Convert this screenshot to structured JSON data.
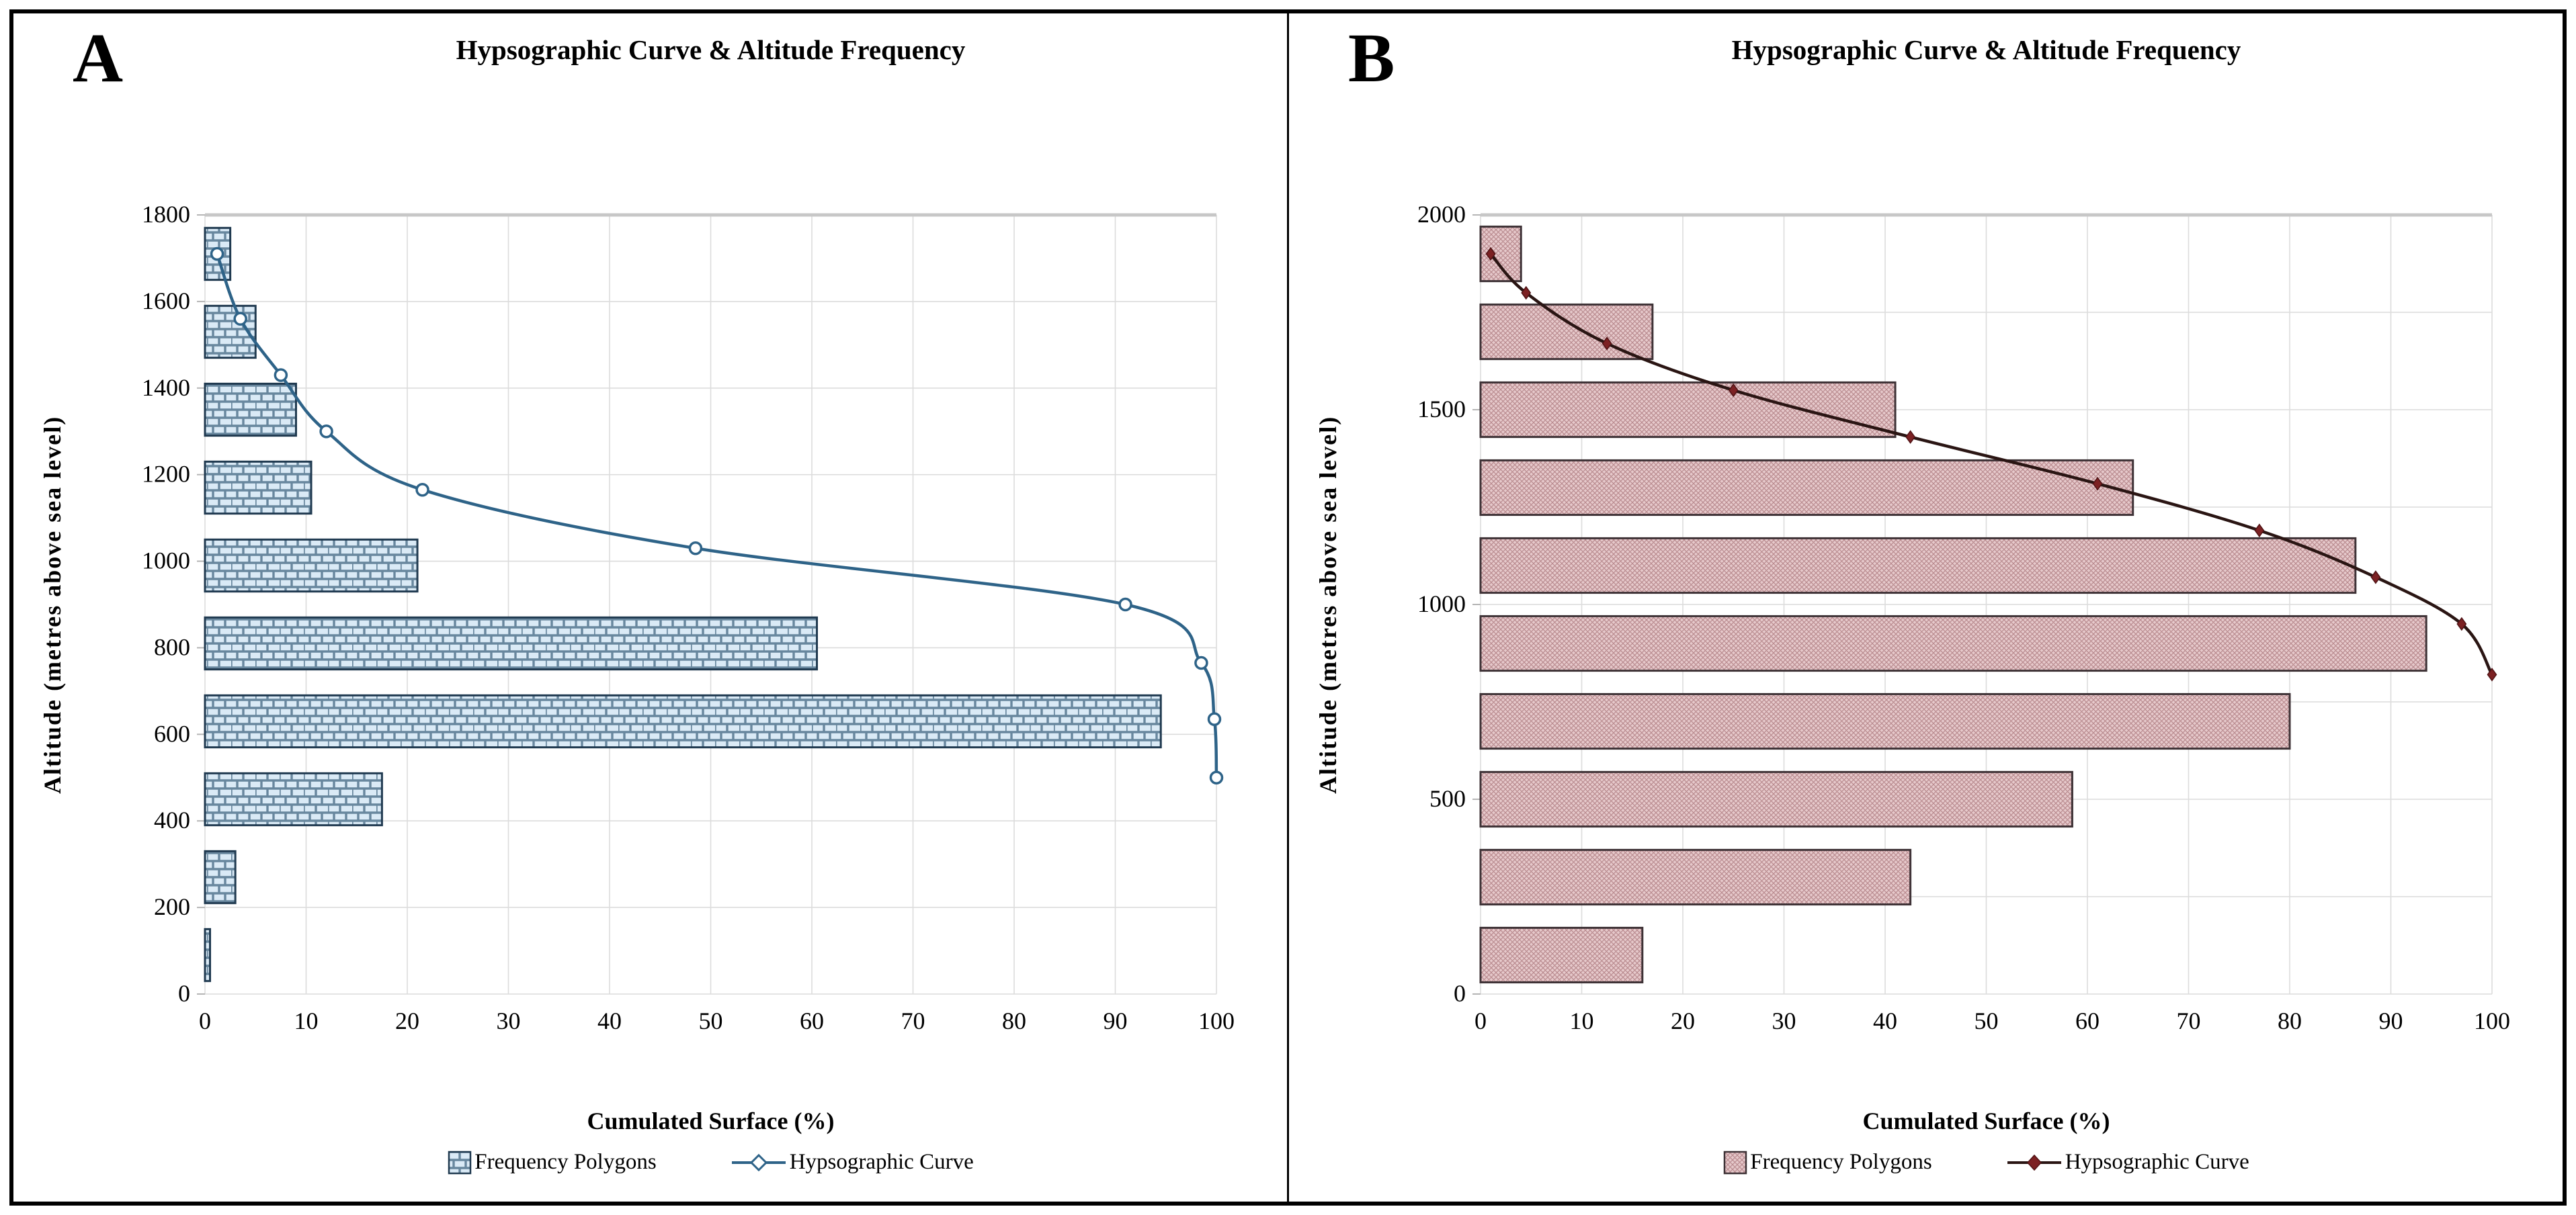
{
  "figure": {
    "panel_count": 2,
    "frame_color": "#000000",
    "background": "#ffffff"
  },
  "chart_data": [
    {
      "type": "bar+line",
      "panel_label": "A",
      "title": "Hypsographic Curve & Altitude Frequency",
      "xlabel": "Cumulated Surface (%)",
      "ylabel": "Altitude (metres above sea level)",
      "x_axis": {
        "min": 0,
        "max": 100,
        "tick_step": 10,
        "grid": true
      },
      "y_axis": {
        "min": 0,
        "max": 1800,
        "tick_step": 200,
        "grid_step": 200,
        "band_height_m": 120,
        "grid": true
      },
      "legend": {
        "bars": "Frequency Polygons",
        "curve": "Hypsographic Curve",
        "position": "bottom"
      },
      "bars": [
        {
          "altitude": 1710,
          "value": 2.5
        },
        {
          "altitude": 1530,
          "value": 5
        },
        {
          "altitude": 1350,
          "value": 9
        },
        {
          "altitude": 1170,
          "value": 10.5
        },
        {
          "altitude": 990,
          "value": 21
        },
        {
          "altitude": 810,
          "value": 60.5
        },
        {
          "altitude": 630,
          "value": 94.5
        },
        {
          "altitude": 450,
          "value": 17.5
        },
        {
          "altitude": 270,
          "value": 3
        },
        {
          "altitude": 90,
          "value": 0.5
        }
      ],
      "curve": [
        [
          1.2,
          1710
        ],
        [
          3.5,
          1560
        ],
        [
          7.5,
          1430
        ],
        [
          12,
          1300
        ],
        [
          21.5,
          1165
        ],
        [
          48.5,
          1030
        ],
        [
          91,
          900
        ],
        [
          98.5,
          765
        ],
        [
          99.8,
          635
        ],
        [
          100,
          500
        ]
      ],
      "marker": "open-circle",
      "hatch_style": "brick",
      "colors": {
        "line": "#2e6388",
        "marker_fill": "#ffffff",
        "marker_stroke": "#2e6388",
        "bar_fill": "#daeaf6",
        "bar_hatch": "#68879e",
        "bar_border": "#203a50",
        "grid": "#dcdcdc",
        "axis_tick": "#b5b5b5",
        "text": "#000000"
      }
    },
    {
      "type": "bar+line",
      "panel_label": "B",
      "title": "Hypsographic Curve & Altitude Frequency",
      "xlabel": "Cumulated Surface (%)",
      "ylabel": "Altitude (metres above sea level)",
      "x_axis": {
        "min": 0,
        "max": 100,
        "tick_step": 10,
        "grid": true
      },
      "y_axis": {
        "min": 0,
        "max": 2000,
        "tick_step": 500,
        "grid_step": 250,
        "band_height_m": 140,
        "grid": true
      },
      "legend": {
        "bars": "Frequency Polygons",
        "curve": "Hypsographic Curve",
        "position": "bottom"
      },
      "bars": [
        {
          "altitude": 1900,
          "value": 4
        },
        {
          "altitude": 1700,
          "value": 17
        },
        {
          "altitude": 1500,
          "value": 41
        },
        {
          "altitude": 1300,
          "value": 64.5
        },
        {
          "altitude": 1100,
          "value": 86.5
        },
        {
          "altitude": 900,
          "value": 93.5
        },
        {
          "altitude": 700,
          "value": 80
        },
        {
          "altitude": 500,
          "value": 58.5
        },
        {
          "altitude": 300,
          "value": 42.5
        },
        {
          "altitude": 100,
          "value": 16
        }
      ],
      "curve": [
        [
          1,
          1900
        ],
        [
          4.5,
          1800
        ],
        [
          12.5,
          1670
        ],
        [
          25,
          1550
        ],
        [
          42.5,
          1430
        ],
        [
          61,
          1310
        ],
        [
          77,
          1190
        ],
        [
          88.5,
          1070
        ],
        [
          97,
          950
        ],
        [
          100,
          820
        ]
      ],
      "marker": "diamond",
      "hatch_style": "crosshatch",
      "colors": {
        "line": "#2a1513",
        "marker_fill": "#7c2123",
        "marker_stroke": "#4f1214",
        "bar_fill": "#e6c9cb",
        "bar_hatch": "#b98b8f",
        "bar_border": "#3e3236",
        "grid": "#dcdcdc",
        "axis_tick": "#b5b5b5",
        "text": "#000000"
      }
    }
  ]
}
